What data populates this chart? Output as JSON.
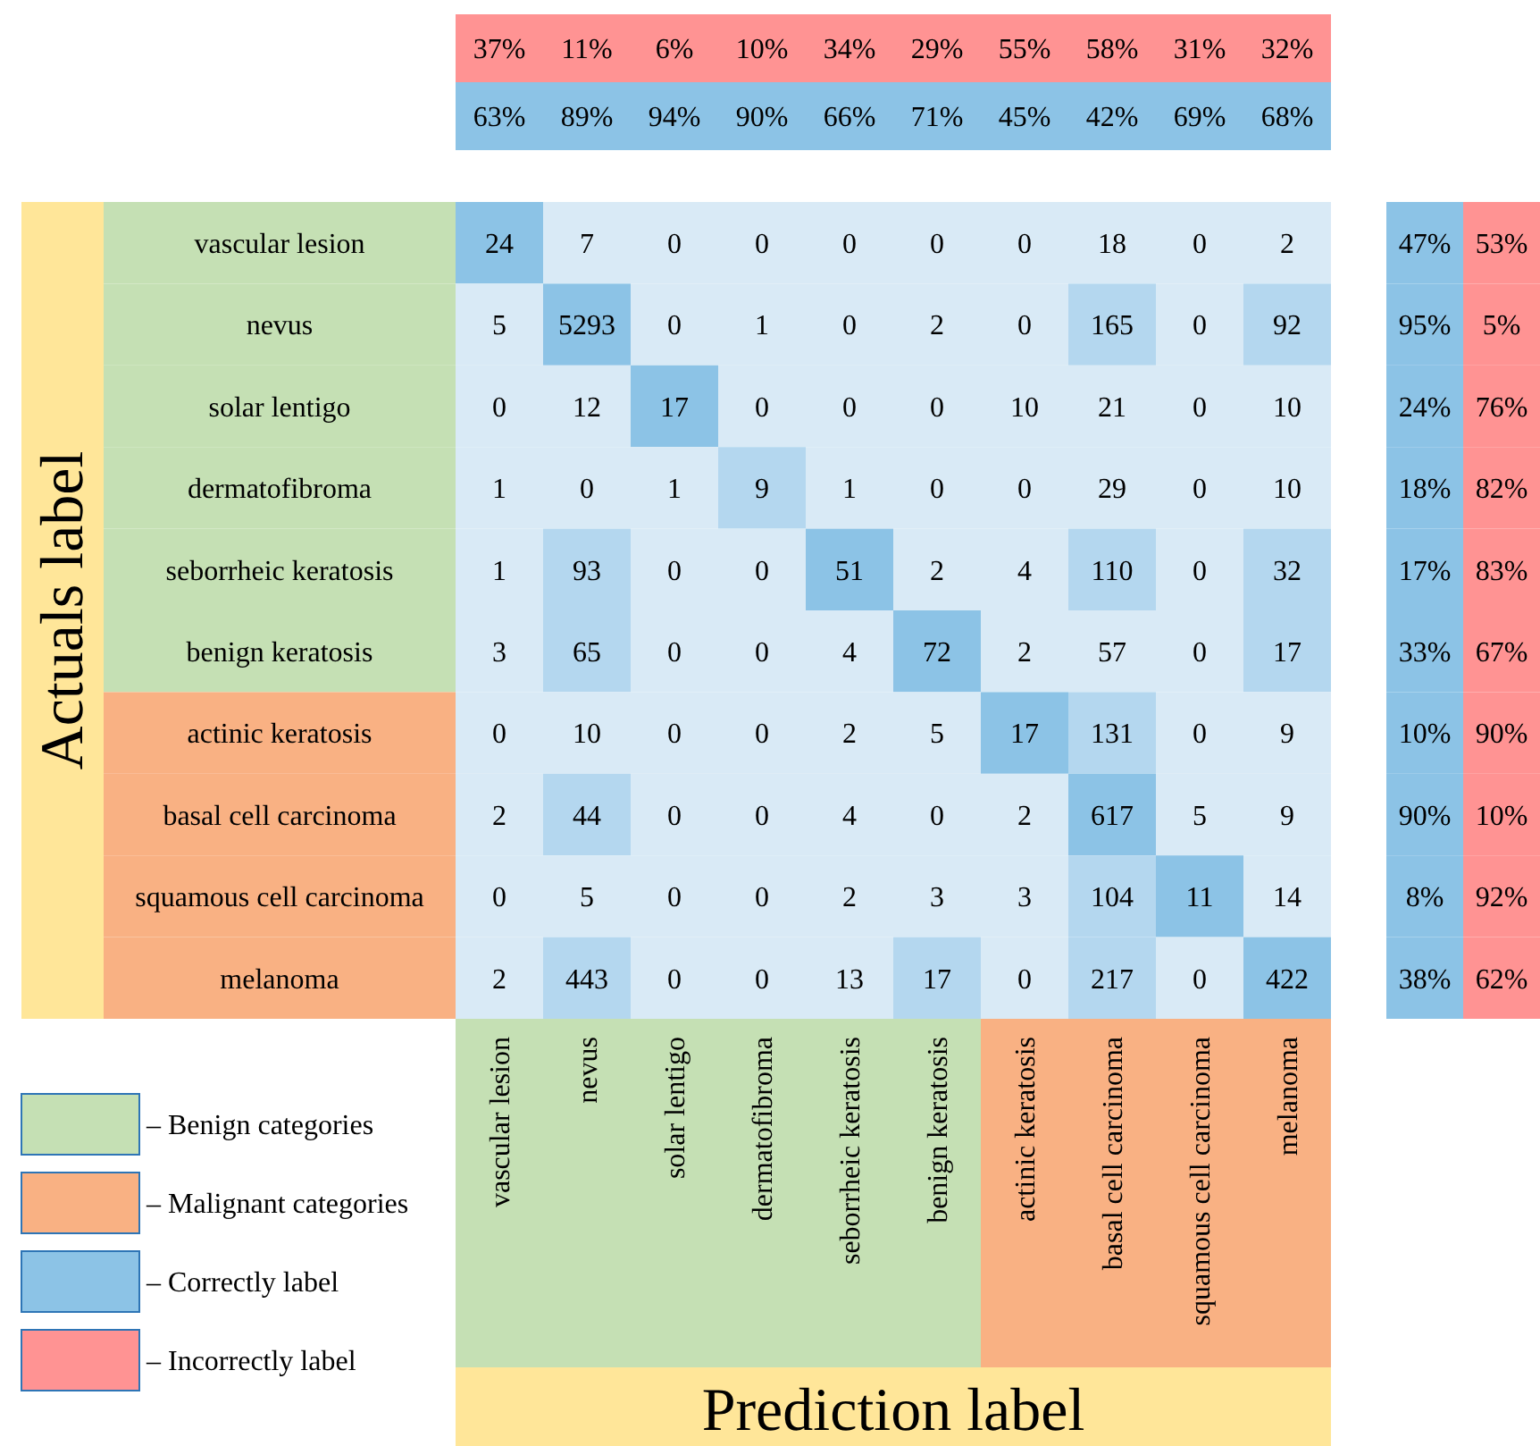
{
  "chart_data": [
    {
      "type": "heatmap",
      "xlabel": "Prediction label",
      "ylabel": "Actuals label",
      "categories": [
        "vascular lesion",
        "nevus",
        "solar lentigo",
        "dermatofibroma",
        "seborrheic keratosis",
        "benign keratosis",
        "actinic keratosis",
        "basal cell carcinoma",
        "squamous cell carcinoma",
        "melanoma"
      ],
      "y_categories": [
        "vascular lesion",
        "nevus",
        "solar lentigo",
        "dermatofibroma",
        "seborrheic keratosis",
        "benign keratosis",
        "actinic keratosis",
        "basal cell carcinoma",
        "squamous cell carcinoma",
        "melanoma"
      ],
      "cells": [
        [
          24,
          7,
          0,
          0,
          0,
          0,
          0,
          18,
          0,
          2
        ],
        [
          5,
          5293,
          0,
          1,
          0,
          2,
          0,
          165,
          0,
          92
        ],
        [
          0,
          12,
          17,
          0,
          0,
          0,
          10,
          21,
          0,
          10
        ],
        [
          1,
          0,
          1,
          9,
          1,
          0,
          0,
          29,
          0,
          10
        ],
        [
          1,
          93,
          0,
          0,
          51,
          2,
          4,
          110,
          0,
          32
        ],
        [
          3,
          65,
          0,
          0,
          4,
          72,
          2,
          57,
          0,
          17
        ],
        [
          0,
          10,
          0,
          0,
          2,
          5,
          17,
          131,
          0,
          9
        ],
        [
          2,
          44,
          0,
          0,
          4,
          0,
          2,
          617,
          5,
          9
        ],
        [
          0,
          5,
          0,
          0,
          2,
          3,
          3,
          104,
          11,
          14
        ],
        [
          2,
          443,
          0,
          0,
          13,
          17,
          0,
          217,
          0,
          422
        ]
      ],
      "colors": [
        [
          "#8cc3e6",
          "#d9eaf6",
          "#d9eaf6",
          "#d9eaf6",
          "#d9eaf6",
          "#d9eaf6",
          "#d9eaf6",
          "#d9eaf6",
          "#d9eaf6",
          "#d9eaf6"
        ],
        [
          "#d9eaf6",
          "#8cc3e6",
          "#d9eaf6",
          "#d9eaf6",
          "#d9eaf6",
          "#d9eaf6",
          "#d9eaf6",
          "#b4d7ef",
          "#d9eaf6",
          "#b4d7ef"
        ],
        [
          "#d9eaf6",
          "#d9eaf6",
          "#8cc3e6",
          "#d9eaf6",
          "#d9eaf6",
          "#d9eaf6",
          "#d9eaf6",
          "#d9eaf6",
          "#d9eaf6",
          "#d9eaf6"
        ],
        [
          "#d9eaf6",
          "#d9eaf6",
          "#d9eaf6",
          "#b4d7ef",
          "#d9eaf6",
          "#d9eaf6",
          "#d9eaf6",
          "#d9eaf6",
          "#d9eaf6",
          "#d9eaf6"
        ],
        [
          "#d9eaf6",
          "#b4d7ef",
          "#d9eaf6",
          "#d9eaf6",
          "#8cc3e6",
          "#d9eaf6",
          "#d9eaf6",
          "#b4d7ef",
          "#d9eaf6",
          "#b4d7ef"
        ],
        [
          "#d9eaf6",
          "#b4d7ef",
          "#d9eaf6",
          "#d9eaf6",
          "#d9eaf6",
          "#8cc3e6",
          "#d9eaf6",
          "#d9eaf6",
          "#d9eaf6",
          "#b4d7ef"
        ],
        [
          "#d9eaf6",
          "#d9eaf6",
          "#d9eaf6",
          "#d9eaf6",
          "#d9eaf6",
          "#d9eaf6",
          "#8cc3e6",
          "#b4d7ef",
          "#d9eaf6",
          "#d9eaf6"
        ],
        [
          "#d9eaf6",
          "#b4d7ef",
          "#d9eaf6",
          "#d9eaf6",
          "#d9eaf6",
          "#d9eaf6",
          "#d9eaf6",
          "#8cc3e6",
          "#d9eaf6",
          "#d9eaf6"
        ],
        [
          "#d9eaf6",
          "#d9eaf6",
          "#d9eaf6",
          "#d9eaf6",
          "#d9eaf6",
          "#d9eaf6",
          "#d9eaf6",
          "#b4d7ef",
          "#8cc3e6",
          "#d9eaf6"
        ],
        [
          "#d9eaf6",
          "#b4d7ef",
          "#d9eaf6",
          "#d9eaf6",
          "#d9eaf6",
          "#b4d7ef",
          "#d9eaf6",
          "#b4d7ef",
          "#d9eaf6",
          "#8cc3e6"
        ]
      ],
      "data_labels": true,
      "annotations": [
        "– Benign categories",
        "– Malignant categories",
        "– Correctly label",
        "– Incorrectly label"
      ]
    },
    {
      "type": "heatmap",
      "categories": [
        null,
        null,
        null,
        null,
        null,
        null,
        null,
        null,
        null,
        null
      ],
      "y_categories": [
        null,
        null
      ],
      "cells": [
        [
          37,
          11,
          6,
          10,
          34,
          29,
          55,
          58,
          31,
          32
        ],
        [
          63,
          89,
          94,
          90,
          66,
          71,
          45,
          42,
          69,
          68
        ]
      ],
      "cell_labels": [
        [
          "37%",
          "11%",
          "6%",
          "10%",
          "34%",
          "29%",
          "55%",
          "58%",
          "31%",
          "32%"
        ],
        [
          "63%",
          "89%",
          "94%",
          "90%",
          "66%",
          "71%",
          "45%",
          "42%",
          "69%",
          "68%"
        ]
      ],
      "colors": [
        "#ff9393",
        "#8cc3e6"
      ]
    },
    {
      "type": "heatmap",
      "categories": [
        null,
        null
      ],
      "y_categories": [
        null,
        null,
        null,
        null,
        null,
        null,
        null,
        null,
        null,
        null
      ],
      "cells": [
        [
          47,
          53
        ],
        [
          95,
          5
        ],
        [
          24,
          76
        ],
        [
          18,
          82
        ],
        [
          17,
          83
        ],
        [
          33,
          67
        ],
        [
          10,
          90
        ],
        [
          90,
          10
        ],
        [
          8,
          92
        ],
        [
          38,
          62
        ]
      ],
      "cell_labels": [
        [
          "47%",
          "53%"
        ],
        [
          "95%",
          "5%"
        ],
        [
          "24%",
          "76%"
        ],
        [
          "18%",
          "82%"
        ],
        [
          "17%",
          "83%"
        ],
        [
          "33%",
          "67%"
        ],
        [
          "10%",
          "90%"
        ],
        [
          "90%",
          "10%"
        ],
        [
          "8%",
          "92%"
        ],
        [
          "38%",
          "62%"
        ]
      ],
      "colors": [
        "#8cc3e6",
        "#ff9393"
      ]
    }
  ]
}
